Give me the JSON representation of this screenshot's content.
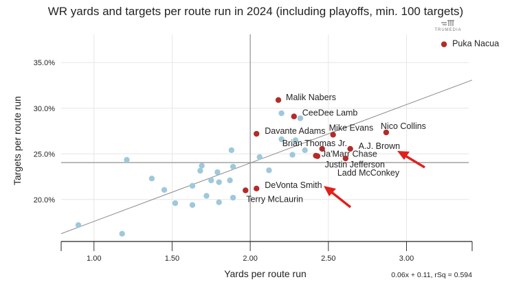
{
  "chart_data": {
    "type": "scatter",
    "title": "WR yards and targets per route run in 2024 (including playoffs, min. 100 targets)",
    "xlabel": "Yards per route run",
    "ylabel": "Targets per route run",
    "xlim": [
      0.79,
      3.42
    ],
    "ylim": [
      15.4,
      38.1
    ],
    "xticks": [
      1.0,
      1.5,
      2.0,
      2.5,
      3.0
    ],
    "xtick_labels": [
      "1.00",
      "1.50",
      "2.00",
      "2.50",
      "3.00"
    ],
    "yticks": [
      20,
      25,
      30,
      35
    ],
    "ytick_labels": [
      "20.0%",
      "25.0%",
      "30.0%",
      "35.0%"
    ],
    "grid": true,
    "mean_lines": {
      "x": 2.0,
      "y": 24.05
    },
    "trendline": {
      "slope": 6.4,
      "intercept": 11.2,
      "label": "0.06x + 0.11, rSq = 0.594"
    },
    "logo_text": "TRUMEDIA",
    "colors": {
      "highlighted": "#b22c2a",
      "other": "#9ec8dc",
      "arrow": "#e0201c",
      "trend": "#888888"
    },
    "highlighted_points": [
      {
        "name": "Puka Nacua",
        "x": 3.24,
        "y": 37.0
      },
      {
        "name": "Malik Nabers",
        "x": 2.18,
        "y": 30.9
      },
      {
        "name": "CeeDee Lamb",
        "x": 2.28,
        "y": 29.1
      },
      {
        "name": "Davante Adams",
        "x": 2.04,
        "y": 27.2
      },
      {
        "name": "Mike Evans",
        "x": 2.53,
        "y": 27.1
      },
      {
        "name": "Nico Collins",
        "x": 2.87,
        "y": 27.35
      },
      {
        "name": "Brian Thomas Jr.",
        "x": 2.46,
        "y": 25.55
      },
      {
        "name": "A.J. Brown",
        "x": 2.64,
        "y": 25.55
      },
      {
        "name": "Ja'Marr Chase",
        "x": 2.43,
        "y": 24.75
      },
      {
        "name": "Justin Jefferson",
        "x": 2.42,
        "y": 24.8
      },
      {
        "name": "Ladd McConkey",
        "x": 2.61,
        "y": 24.5
      },
      {
        "name": "DeVonta Smith",
        "x": 2.04,
        "y": 21.2
      },
      {
        "name": "Terry McLaurin",
        "x": 1.97,
        "y": 21.0
      }
    ],
    "other_points": [
      {
        "x": 0.9,
        "y": 17.2
      },
      {
        "x": 1.18,
        "y": 16.25
      },
      {
        "x": 1.21,
        "y": 24.35
      },
      {
        "x": 1.37,
        "y": 22.3
      },
      {
        "x": 1.45,
        "y": 21.05
      },
      {
        "x": 1.52,
        "y": 19.6
      },
      {
        "x": 1.63,
        "y": 19.4
      },
      {
        "x": 1.63,
        "y": 21.5
      },
      {
        "x": 1.72,
        "y": 20.4
      },
      {
        "x": 1.68,
        "y": 23.15
      },
      {
        "x": 1.69,
        "y": 23.7
      },
      {
        "x": 1.75,
        "y": 22.1
      },
      {
        "x": 1.79,
        "y": 23.0
      },
      {
        "x": 1.8,
        "y": 21.9
      },
      {
        "x": 1.8,
        "y": 19.7
      },
      {
        "x": 1.87,
        "y": 22.1
      },
      {
        "x": 1.89,
        "y": 20.2
      },
      {
        "x": 1.89,
        "y": 23.6
      },
      {
        "x": 1.88,
        "y": 25.4
      },
      {
        "x": 2.06,
        "y": 24.65
      },
      {
        "x": 2.2,
        "y": 29.45
      },
      {
        "x": 2.32,
        "y": 28.9
      },
      {
        "x": 2.2,
        "y": 26.6
      },
      {
        "x": 2.29,
        "y": 26.5
      },
      {
        "x": 2.35,
        "y": 25.4
      },
      {
        "x": 2.27,
        "y": 24.9
      },
      {
        "x": 2.12,
        "y": 23.2
      }
    ]
  }
}
